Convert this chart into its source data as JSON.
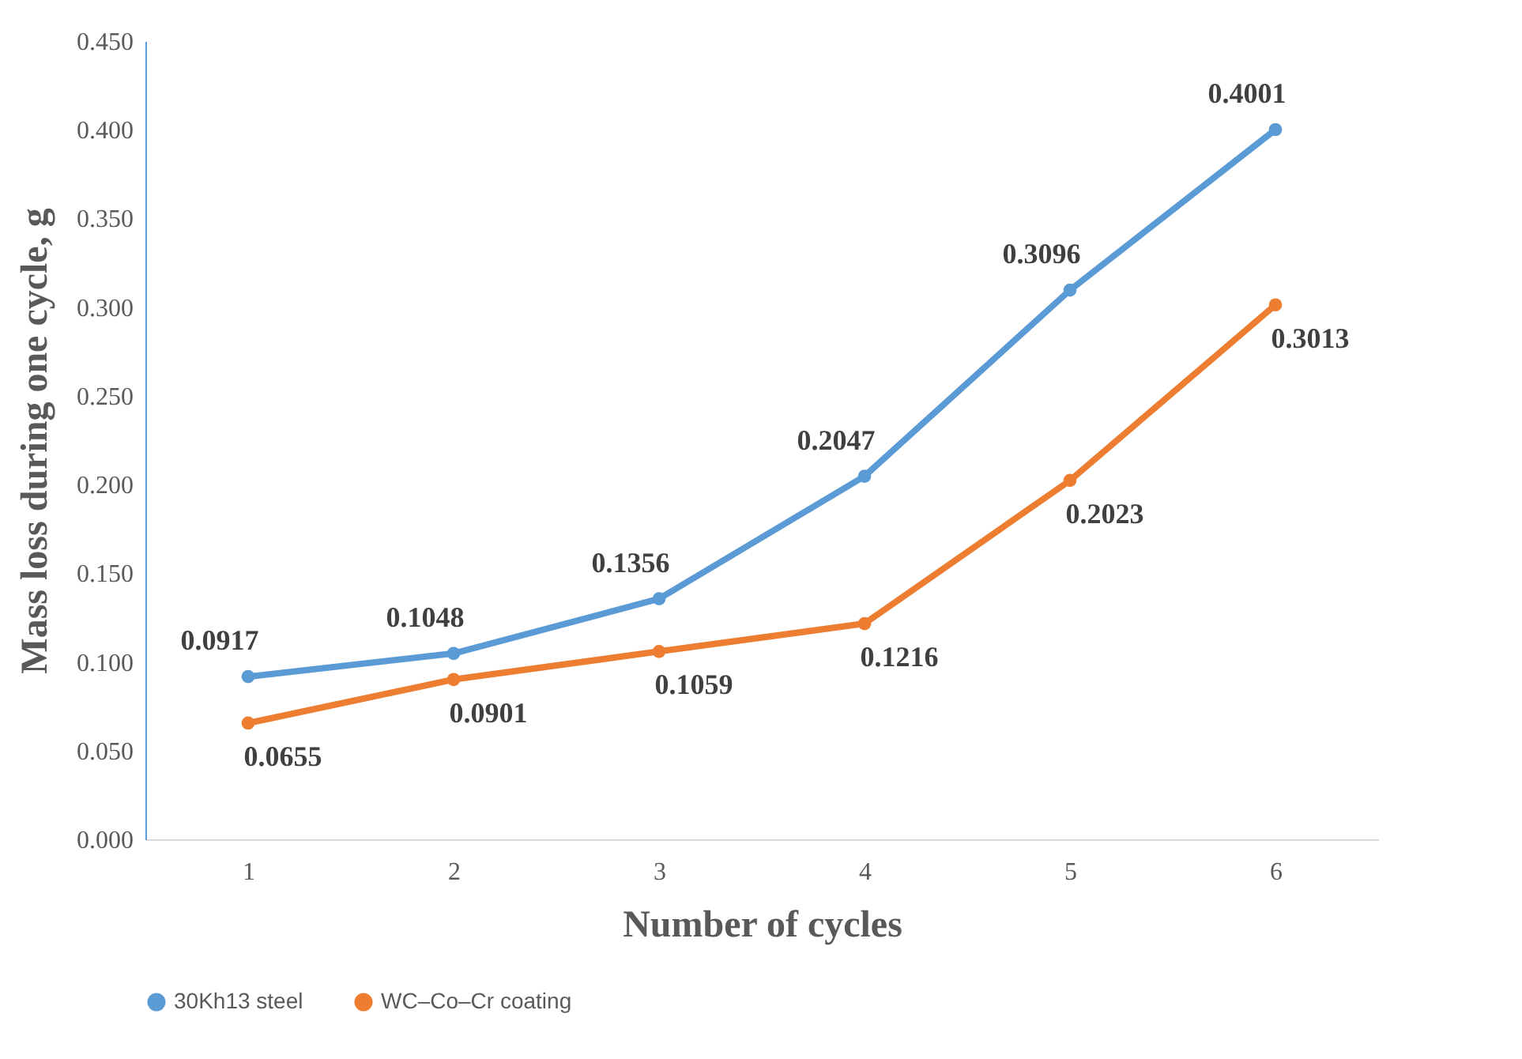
{
  "chart_data": {
    "type": "line",
    "xlabel": "Number of cycles",
    "ylabel": "Mass loss during one cycle, g",
    "categories": [
      "1",
      "2",
      "3",
      "4",
      "5",
      "6"
    ],
    "series": [
      {
        "name": "30Kh13 steel",
        "color": "#5b9bd5",
        "values": [
          0.0917,
          0.1048,
          0.1356,
          0.2047,
          0.3096,
          0.4001
        ]
      },
      {
        "name": "WC–Co–Cr coating",
        "color": "#ed7d31",
        "values": [
          0.0655,
          0.0901,
          0.1059,
          0.1216,
          0.2023,
          0.3013
        ]
      }
    ],
    "ylim": [
      0,
      0.45
    ],
    "yticks": [
      {
        "value": 0,
        "label": "0.000"
      },
      {
        "value": 0.05,
        "label": "0.050"
      },
      {
        "value": 0.1,
        "label": "0.100"
      },
      {
        "value": 0.15,
        "label": "0.150"
      },
      {
        "value": 0.2,
        "label": "0.200"
      },
      {
        "value": 0.25,
        "label": "0.250"
      },
      {
        "value": 0.3,
        "label": "0.300"
      },
      {
        "value": 0.35,
        "label": "0.350"
      },
      {
        "value": 0.4,
        "label": "0.400"
      },
      {
        "value": 0.45,
        "label": "0.450"
      }
    ],
    "data_labels": true,
    "grid": false,
    "legend": "bottom",
    "marker": "circle",
    "line_style": "solid"
  }
}
